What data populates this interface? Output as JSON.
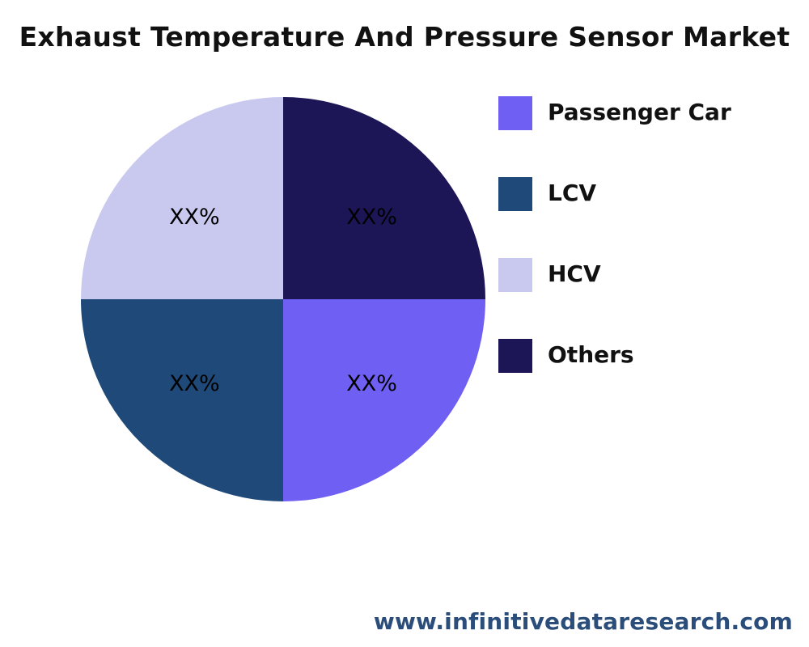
{
  "chart_data": {
    "type": "pie",
    "title": "Exhaust Temperature And Pressure Sensor Market",
    "legend_position": "right",
    "slices": [
      {
        "name": "Passenger Car",
        "value": 25,
        "label": "XX%",
        "color": "#6f5ff2"
      },
      {
        "name": "LCV",
        "value": 25,
        "label": "XX%",
        "color": "#1f4978"
      },
      {
        "name": "HCV",
        "value": 25,
        "label": "XX%",
        "color": "#c9c9f0"
      },
      {
        "name": "Others",
        "value": 25,
        "label": "XX%",
        "color": "#1c1657"
      }
    ]
  },
  "footer": {
    "source": "www.infinitivedataresearch.com"
  }
}
